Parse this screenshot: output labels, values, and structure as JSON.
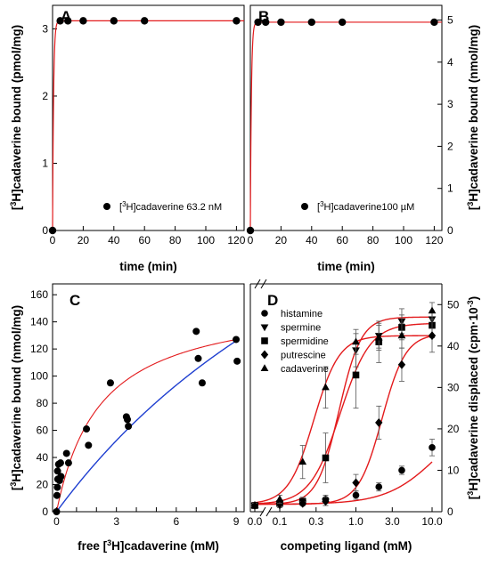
{
  "figure": {
    "panels": [
      "A",
      "B",
      "C",
      "D"
    ]
  },
  "colors": {
    "fit_red": "#e31a1c",
    "fit_blue": "#1f3fd0",
    "marker": "#000000",
    "axis": "#000000"
  },
  "chart_data": [
    {
      "panel": "A",
      "type": "line",
      "xlabel": "time (min)",
      "ylabel": "[3H]cadaverine bound (pmol/mg)",
      "xlim": [
        0,
        125
      ],
      "ylim": [
        0,
        3.35
      ],
      "xticks": [
        0,
        20,
        40,
        60,
        80,
        100,
        120
      ],
      "yticks": [
        0,
        1,
        2,
        3
      ],
      "series": [
        {
          "name": "[3H]cadaverine 63.2 nM",
          "marker": "circle",
          "x": [
            0,
            5,
            10,
            20,
            40,
            60,
            120
          ],
          "y": [
            0,
            3.12,
            3.12,
            3.12,
            3.12,
            3.12,
            3.12
          ]
        }
      ],
      "fit": {
        "type": "one-phase association",
        "plateau": 3.12,
        "k": 1.5,
        "color": "red"
      },
      "legend_position": "bottom-right",
      "grid": false
    },
    {
      "panel": "B",
      "type": "line",
      "xlabel": "time (min)",
      "ylabel": "[3H]cadaverine bound (nmol/mg)",
      "yaxis_side": "right",
      "xlim": [
        0,
        125
      ],
      "ylim": [
        0,
        5.35
      ],
      "xticks": [
        0,
        20,
        40,
        60,
        80,
        100,
        120
      ],
      "yticks": [
        0,
        1,
        2,
        3,
        4,
        5
      ],
      "series": [
        {
          "name": "[3H]cadaverine100 µM",
          "marker": "circle",
          "x": [
            0,
            5,
            10,
            20,
            40,
            60,
            120
          ],
          "y": [
            0,
            4.95,
            4.95,
            4.95,
            4.95,
            4.95,
            4.95
          ]
        }
      ],
      "fit": {
        "type": "one-phase association",
        "plateau": 4.95,
        "k": 1.5,
        "color": "red"
      },
      "legend_position": "bottom-right",
      "grid": false
    },
    {
      "panel": "C",
      "type": "scatter",
      "xlabel": "free [3H]cadaverine (mM)",
      "ylabel": "[3H]cadaverine bound (nmol/mg)",
      "xlim": [
        -0.2,
        9.4
      ],
      "ylim": [
        0,
        168
      ],
      "xticks": [
        0,
        1,
        2,
        3,
        4,
        5,
        6,
        7,
        8,
        9
      ],
      "xticklabels": [
        "0",
        "",
        "",
        "3",
        "",
        "",
        "6",
        "",
        "",
        "9"
      ],
      "yticks": [
        0,
        20,
        40,
        60,
        80,
        100,
        120,
        140,
        160
      ],
      "points": {
        "marker": "circle",
        "x": [
          0.0,
          0.02,
          0.04,
          0.06,
          0.05,
          0.1,
          0.15,
          0.2,
          0.22,
          0.5,
          0.6,
          1.5,
          1.6,
          2.7,
          3.5,
          3.55,
          3.6,
          7.0,
          7.1,
          7.3,
          9.0,
          9.05
        ],
        "y": [
          0,
          12,
          18,
          24,
          30,
          35,
          23,
          36,
          26,
          43,
          36,
          61,
          49,
          95,
          70,
          68,
          63,
          133,
          113,
          95,
          127,
          111
        ]
      },
      "fits": [
        {
          "type": "saturation",
          "bmax": 158,
          "kd": 2.2,
          "color": "red"
        },
        {
          "type": "saturation",
          "bmax": 420,
          "kd": 21,
          "color": "blue"
        }
      ],
      "grid": false
    },
    {
      "panel": "D",
      "type": "scatter",
      "xlabel": "competing ligand (mM)",
      "ylabel": "[3H]cadaverine displaced (cpm·10-3)",
      "yaxis_side": "right",
      "xscale": "log",
      "xaxis_break": true,
      "xticks": [
        0.0,
        0.1,
        0.3,
        1.0,
        3.0,
        10.0
      ],
      "xticklabels": [
        "0.0",
        "0.1",
        "0.3",
        "1.0",
        "3.0",
        "10.0"
      ],
      "ylim": [
        0,
        55
      ],
      "yticks": [
        0,
        10,
        20,
        30,
        40,
        50
      ],
      "legend_position": "top-left",
      "series": [
        {
          "name": "histamine",
          "marker": "circle",
          "x": [
            0.0,
            0.1,
            0.2,
            0.4,
            1.0,
            2.0,
            4.0,
            10.0
          ],
          "y": [
            1.5,
            2.0,
            2.0,
            3.0,
            4.0,
            6.0,
            10.0,
            15.5
          ],
          "err": [
            0.5,
            0.5,
            0.5,
            1.0,
            1.0,
            1.0,
            1.0,
            2.0
          ],
          "fit": {
            "bottom": 1.8,
            "top": 25,
            "ec50": 12,
            "hill": 1.3
          }
        },
        {
          "name": "spermine",
          "marker": "triangle-down",
          "x": [
            0.0,
            0.1,
            0.2,
            0.4,
            1.0,
            2.0,
            4.0,
            10.0
          ],
          "y": [
            1.5,
            1.5,
            2.0,
            2.5,
            39.0,
            42.5,
            46.0,
            46.5
          ],
          "err": [
            0.5,
            0.5,
            0.5,
            1.0,
            4.0,
            3.0,
            3.0,
            2.0
          ],
          "fit": {
            "bottom": 1.8,
            "top": 47,
            "ec50": 0.6,
            "hill": 3.0
          }
        },
        {
          "name": "spermidine",
          "marker": "square",
          "x": [
            0.0,
            0.1,
            0.2,
            0.4,
            1.0,
            2.0,
            4.0,
            10.0
          ],
          "y": [
            1.5,
            2.0,
            2.5,
            13.0,
            33.0,
            41.0,
            44.5,
            45.0
          ],
          "err": [
            0.5,
            0.5,
            1.0,
            6.0,
            8.0,
            5.0,
            3.0,
            3.0
          ],
          "fit": {
            "bottom": 1.8,
            "top": 45.5,
            "ec50": 0.62,
            "hill": 2.2
          }
        },
        {
          "name": "putrescine",
          "marker": "diamond",
          "x": [
            0.0,
            0.1,
            0.2,
            0.4,
            1.0,
            2.0,
            4.0,
            10.0
          ],
          "y": [
            1.5,
            2.0,
            2.0,
            2.5,
            7.0,
            21.5,
            35.5,
            42.5
          ],
          "err": [
            0.5,
            0.5,
            0.5,
            1.0,
            2.0,
            4.0,
            4.0,
            4.0
          ],
          "fit": {
            "bottom": 1.8,
            "top": 43,
            "ec50": 2.2,
            "hill": 2.8
          }
        },
        {
          "name": "cadaverine",
          "marker": "triangle-up",
          "x": [
            0.0,
            0.1,
            0.2,
            0.4,
            1.0,
            2.0,
            4.0,
            10.0
          ],
          "y": [
            1.5,
            3.0,
            12.0,
            30.0,
            41.0,
            42.0,
            42.5,
            48.5
          ],
          "err": [
            0.5,
            1.0,
            4.0,
            5.0,
            3.0,
            3.0,
            3.0,
            2.0
          ],
          "fit": {
            "bottom": 1.8,
            "top": 42.5,
            "ec50": 0.28,
            "hill": 2.6
          }
        }
      ],
      "grid": false
    }
  ]
}
